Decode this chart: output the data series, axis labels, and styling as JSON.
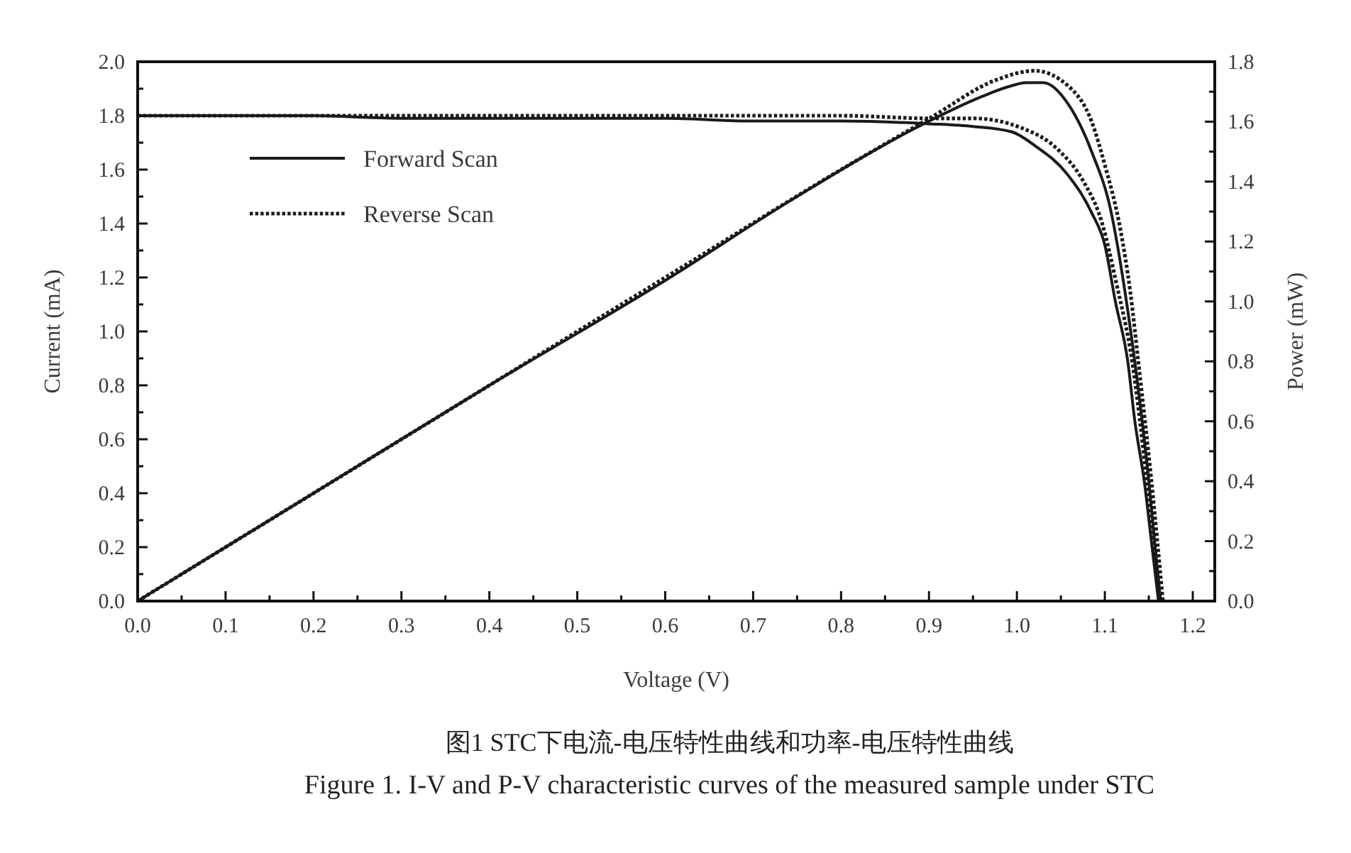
{
  "chart_data": {
    "type": "line",
    "xlabel": "Voltage (V)",
    "ylabel": "Current (mA)",
    "y2label": "Power (mW)",
    "annotations": [
      "图1 STC下电流-电压特性曲线和功率-电压特性曲线",
      "Figure 1. I-V and P-V characteristic curves of the measured sample under STC"
    ],
    "xlim": [
      0,
      1.225
    ],
    "ylim": [
      0,
      2.0
    ],
    "y2lim": [
      0,
      1.8
    ],
    "xticks": [
      {
        "value": 0,
        "label": "0.0"
      },
      {
        "value": 0.05,
        "label": null
      },
      {
        "value": 0.1,
        "label": "0.1"
      },
      {
        "value": 0.15,
        "label": null
      },
      {
        "value": 0.2,
        "label": "0.2"
      },
      {
        "value": 0.25,
        "label": null
      },
      {
        "value": 0.3,
        "label": "0.3"
      },
      {
        "value": 0.35,
        "label": null
      },
      {
        "value": 0.4,
        "label": "0.4"
      },
      {
        "value": 0.45,
        "label": null
      },
      {
        "value": 0.5,
        "label": "0.5"
      },
      {
        "value": 0.55,
        "label": null
      },
      {
        "value": 0.6,
        "label": "0.6"
      },
      {
        "value": 0.65,
        "label": null
      },
      {
        "value": 0.7,
        "label": "0.7"
      },
      {
        "value": 0.75,
        "label": null
      },
      {
        "value": 0.8,
        "label": "0.8"
      },
      {
        "value": 0.85,
        "label": null
      },
      {
        "value": 0.9,
        "label": "0.9"
      },
      {
        "value": 0.95,
        "label": null
      },
      {
        "value": 1.0,
        "label": "1.0"
      },
      {
        "value": 1.05,
        "label": null
      },
      {
        "value": 1.1,
        "label": "1.1"
      },
      {
        "value": 1.15,
        "label": null
      },
      {
        "value": 1.2,
        "label": "1.2"
      }
    ],
    "yticks": [
      {
        "value": 0,
        "label": "0.0"
      },
      {
        "value": 0.1,
        "label": null
      },
      {
        "value": 0.2,
        "label": "0.2"
      },
      {
        "value": 0.3,
        "label": null
      },
      {
        "value": 0.4,
        "label": "0.4"
      },
      {
        "value": 0.5,
        "label": null
      },
      {
        "value": 0.6,
        "label": "0.6"
      },
      {
        "value": 0.7,
        "label": null
      },
      {
        "value": 0.8,
        "label": "0.8"
      },
      {
        "value": 0.9,
        "label": null
      },
      {
        "value": 1.0,
        "label": "1.0"
      },
      {
        "value": 1.1,
        "label": null
      },
      {
        "value": 1.2,
        "label": "1.2"
      },
      {
        "value": 1.3,
        "label": null
      },
      {
        "value": 1.4,
        "label": "1.4"
      },
      {
        "value": 1.5,
        "label": null
      },
      {
        "value": 1.6,
        "label": "1.6"
      },
      {
        "value": 1.7,
        "label": null
      },
      {
        "value": 1.8,
        "label": "1.8"
      },
      {
        "value": 1.9,
        "label": null
      },
      {
        "value": 2.0,
        "label": "2.0"
      }
    ],
    "y2ticks": [
      {
        "value": 0,
        "label": "0.0"
      },
      {
        "value": 0.1,
        "label": null
      },
      {
        "value": 0.2,
        "label": "0.2"
      },
      {
        "value": 0.3,
        "label": null
      },
      {
        "value": 0.4,
        "label": "0.4"
      },
      {
        "value": 0.5,
        "label": null
      },
      {
        "value": 0.6,
        "label": "0.6"
      },
      {
        "value": 0.7,
        "label": null
      },
      {
        "value": 0.8,
        "label": "0.8"
      },
      {
        "value": 0.9,
        "label": null
      },
      {
        "value": 1.0,
        "label": "1.0"
      },
      {
        "value": 1.1,
        "label": null
      },
      {
        "value": 1.2,
        "label": "1.2"
      },
      {
        "value": 1.3,
        "label": null
      },
      {
        "value": 1.4,
        "label": "1.4"
      },
      {
        "value": 1.5,
        "label": null
      },
      {
        "value": 1.6,
        "label": "1.6"
      },
      {
        "value": 1.7,
        "label": null
      },
      {
        "value": 1.8,
        "label": "1.8"
      }
    ],
    "legend": "top left",
    "series": [
      {
        "name": "Forward Scan",
        "color": "#1a1a1a",
        "line_style": "solid",
        "x": [
          0,
          0.1,
          0.2,
          0.3,
          0.4,
          0.5,
          0.6,
          0.7,
          0.8,
          0.9,
          0.95,
          0.994,
          1.02,
          1.058,
          1.085,
          1.1,
          1.112,
          1.126,
          1.134,
          1.145,
          1.153,
          1.161
        ],
        "values": [
          1.8,
          1.8,
          1.8,
          1.79,
          1.79,
          1.79,
          1.79,
          1.78,
          1.78,
          1.77,
          1.76,
          1.74,
          1.69,
          1.58,
          1.44,
          1.32,
          1.11,
          0.89,
          0.67,
          0.44,
          0.22,
          0
        ]
      },
      {
        "name": "Reverse Scan",
        "color": "#1a1a1a",
        "line_style": "dotted",
        "x": [
          0,
          0.1,
          0.2,
          0.3,
          0.4,
          0.5,
          0.6,
          0.7,
          0.8,
          0.9,
          0.95,
          1.005,
          1.048,
          1.075,
          1.097,
          1.113,
          1.131,
          1.148,
          1.163
        ],
        "values": [
          1.8,
          1.8,
          1.8,
          1.8,
          1.8,
          1.8,
          1.8,
          1.8,
          1.8,
          1.79,
          1.79,
          1.755,
          1.67,
          1.56,
          1.4,
          1.18,
          0.89,
          0.44,
          0
        ]
      },
      {
        "color": "#1a1a1a",
        "line_style": "solid",
        "axis": "y2",
        "x": [
          0,
          0.2,
          0.4,
          0.6,
          0.747,
          0.892,
          0.961,
          0.994,
          1.01,
          1.03,
          1.058,
          1.085,
          1.107,
          1.123,
          1.134,
          1.15,
          1.163
        ],
        "values": [
          0,
          0.36,
          0.72,
          1.07,
          1.345,
          1.59,
          1.685,
          1.72,
          1.73,
          1.73,
          1.66,
          1.5,
          1.3,
          1.03,
          0.8,
          0.4,
          0
        ]
      },
      {
        "color": "#1a1a1a",
        "line_style": "dotted",
        "axis": "y2",
        "x": [
          0,
          0.2,
          0.4,
          0.6,
          0.8,
          0.9,
          0.977,
          1.02,
          1.058,
          1.085,
          1.1,
          1.118,
          1.129,
          1.138,
          1.153,
          1.166
        ],
        "values": [
          0,
          0.36,
          0.72,
          1.08,
          1.44,
          1.61,
          1.74,
          1.77,
          1.72,
          1.6,
          1.455,
          1.235,
          1.03,
          0.8,
          0.4,
          0
        ]
      }
    ]
  }
}
